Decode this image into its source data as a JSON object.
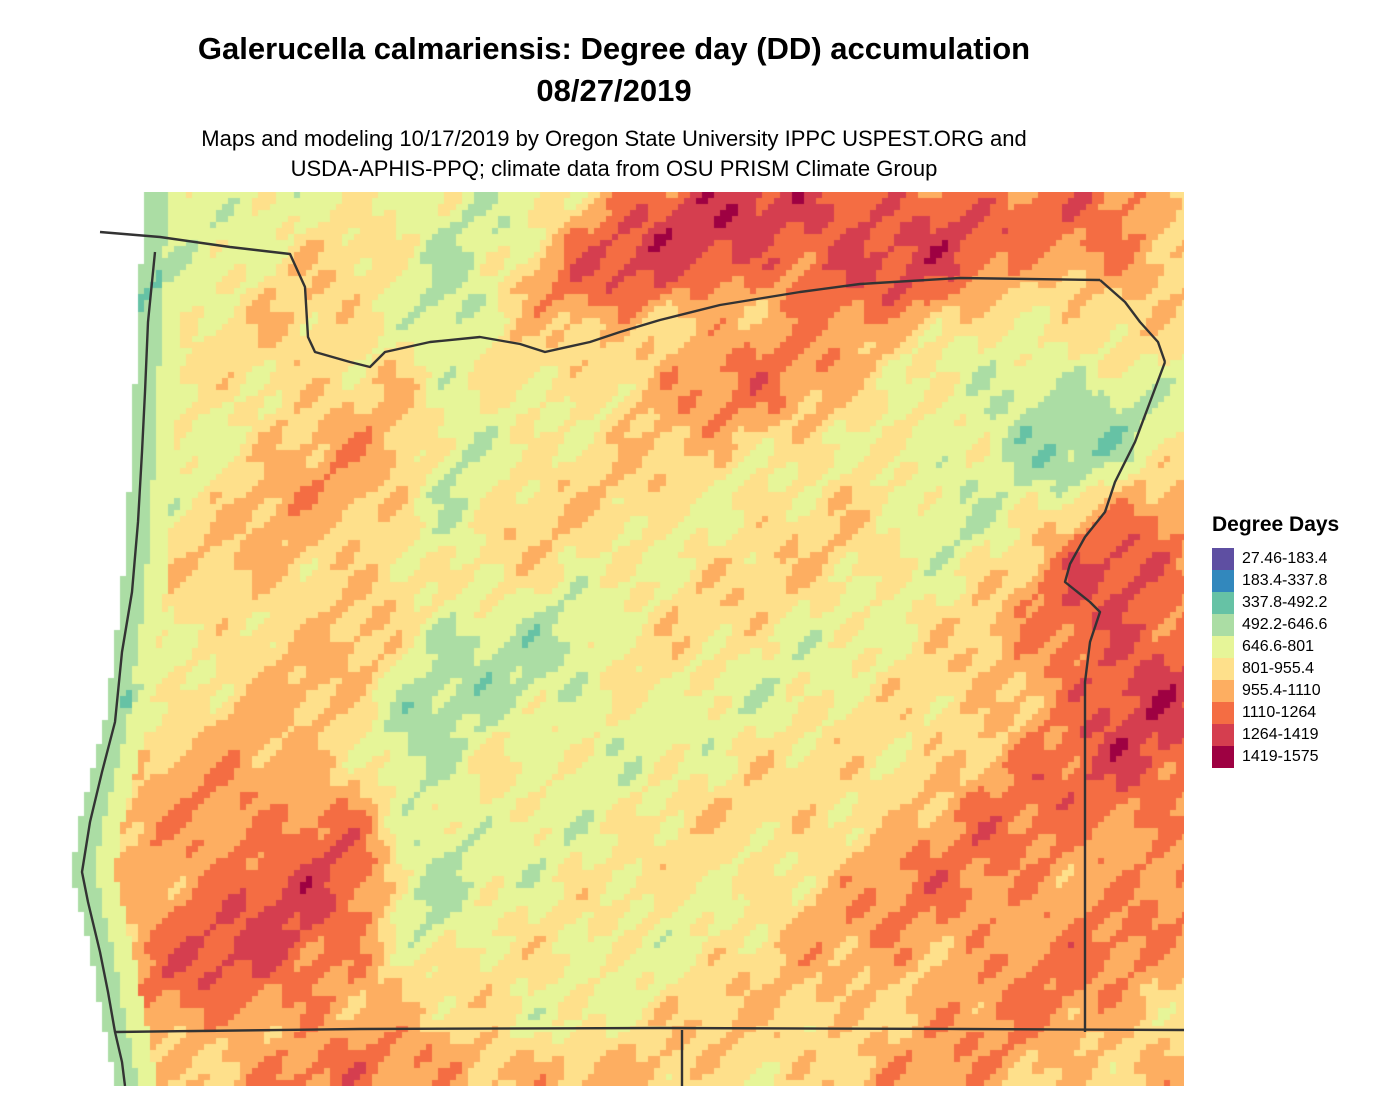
{
  "header": {
    "title_line1": "Galerucella calmariensis: Degree day (DD) accumulation",
    "title_line2": "08/27/2019",
    "subtitle_line1": "Maps and modeling 10/17/2019 by Oregon State University IPPC USPEST.ORG and",
    "subtitle_line2": "USDA-APHIS-PPQ; climate data from OSU PRISM Climate Group"
  },
  "legend": {
    "title": "Degree Days",
    "items": [
      {
        "label": "27.46-183.4",
        "color": "#5e4fa2"
      },
      {
        "label": "183.4-337.8",
        "color": "#3288bd"
      },
      {
        "label": "337.8-492.2",
        "color": "#66c2a5"
      },
      {
        "label": "492.2-646.6",
        "color": "#abdda4"
      },
      {
        "label": "646.6-801",
        "color": "#e6f598"
      },
      {
        "label": "801-955.4",
        "color": "#fee08b"
      },
      {
        "label": "955.4-1110",
        "color": "#fdae61"
      },
      {
        "label": "1110-1264",
        "color": "#f46d43"
      },
      {
        "label": "1264-1419",
        "color": "#d53e4f"
      },
      {
        "label": "1419-1575",
        "color": "#9e0142"
      }
    ]
  }
}
